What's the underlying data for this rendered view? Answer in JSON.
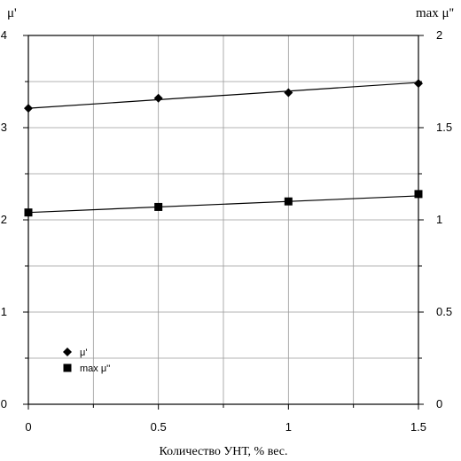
{
  "chart_data": {
    "type": "line",
    "title": "",
    "xlabel": "Количество УНТ, % вес.",
    "ylabel_left": "μ'",
    "ylabel_right": "max μ''",
    "xlim": [
      0,
      1.5
    ],
    "ylim_left": [
      0,
      4
    ],
    "ylim_right": [
      0,
      2
    ],
    "x_ticks": [
      "0",
      "0.5",
      "1",
      "1.5"
    ],
    "y_left_ticks": [
      "0",
      "1",
      "2",
      "3",
      "4"
    ],
    "y_right_ticks": [
      "0",
      "0.5",
      "1",
      "1.5",
      "2"
    ],
    "grid": true,
    "legend_position": "bottom-left",
    "series": [
      {
        "name": "μ'",
        "axis": "left",
        "marker": "diamond",
        "color": "#000000",
        "x": [
          0,
          0.5,
          1,
          1.5
        ],
        "y": [
          3.21,
          3.32,
          3.38,
          3.48
        ],
        "fit": [
          3.21,
          3.49
        ]
      },
      {
        "name": "max μ''",
        "axis": "right",
        "marker": "square",
        "color": "#000000",
        "x": [
          0,
          0.5,
          1,
          1.5
        ],
        "y": [
          1.04,
          1.07,
          1.1,
          1.14
        ],
        "fit": [
          1.04,
          1.13
        ]
      }
    ]
  }
}
